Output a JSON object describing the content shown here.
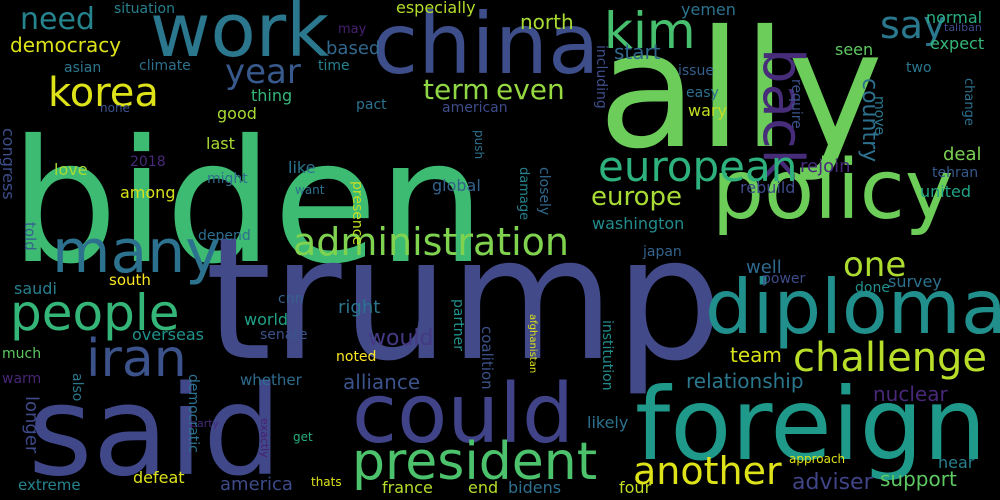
{
  "words": [
    {
      "text": "biden",
      "color": "#3dbb73"
    },
    {
      "text": "ally",
      "color": "#6ccd5a"
    },
    {
      "text": "trump",
      "color": "#424a8a"
    },
    {
      "text": "said",
      "color": "#40488a"
    },
    {
      "text": "foreign",
      "color": "#1f998a"
    },
    {
      "text": "china",
      "color": "#3d4e8a"
    },
    {
      "text": "policy",
      "color": "#6dcd59"
    },
    {
      "text": "work",
      "color": "#2a778e"
    },
    {
      "text": "could",
      "color": "#404387"
    },
    {
      "text": "diplomat",
      "color": "#21908d"
    },
    {
      "text": "president",
      "color": "#4cc26c"
    },
    {
      "text": "administration",
      "color": "#7fd34e"
    },
    {
      "text": "people",
      "color": "#34b679"
    },
    {
      "text": "many",
      "color": "#2c728e"
    },
    {
      "text": "iran",
      "color": "#3b528b"
    },
    {
      "text": "back",
      "color": "#472c7a"
    },
    {
      "text": "kim",
      "color": "#46c06f"
    },
    {
      "text": "korea",
      "color": "#dde318"
    },
    {
      "text": "european",
      "color": "#2db27d"
    },
    {
      "text": "challenge",
      "color": "#b8de29"
    },
    {
      "text": "another",
      "color": "#dde318"
    },
    {
      "text": "term",
      "color": "#8fd744"
    },
    {
      "text": "even",
      "color": "#95d840"
    },
    {
      "text": "say",
      "color": "#2a788e"
    },
    {
      "text": "year",
      "color": "#38598c"
    },
    {
      "text": "one",
      "color": "#addc30"
    },
    {
      "text": "europe",
      "color": "#a8db34"
    },
    {
      "text": "need",
      "color": "#25848e"
    },
    {
      "text": "democracy",
      "color": "#dde318"
    },
    {
      "text": "country",
      "color": "#2d718e"
    },
    {
      "text": "relationship",
      "color": "#2a778e"
    },
    {
      "text": "adviser",
      "color": "#414487"
    },
    {
      "text": "would",
      "color": "#443983"
    },
    {
      "text": "team",
      "color": "#d8e219"
    },
    {
      "text": "alliance",
      "color": "#3b528b"
    },
    {
      "text": "nuclear",
      "color": "#482878"
    },
    {
      "text": "support",
      "color": "#5ec962"
    },
    {
      "text": "america",
      "color": "#3e4a89"
    },
    {
      "text": "north",
      "color": "#a8db34"
    },
    {
      "text": "start",
      "color": "#31688e"
    },
    {
      "text": "based",
      "color": "#31688e"
    },
    {
      "text": "especially",
      "color": "#b5de2b"
    },
    {
      "text": "yemen",
      "color": "#2c728e"
    },
    {
      "text": "normal",
      "color": "#29af7f"
    },
    {
      "text": "seen",
      "color": "#5ec962"
    },
    {
      "text": "expect",
      "color": "#35b779"
    },
    {
      "text": "rejoin",
      "color": "#472a7a"
    },
    {
      "text": "deal",
      "color": "#7ad151"
    },
    {
      "text": "tehran",
      "color": "#38598c"
    },
    {
      "text": "united",
      "color": "#20a386"
    },
    {
      "text": "rebuild",
      "color": "#3e4a89"
    },
    {
      "text": "washington",
      "color": "#228c8d"
    },
    {
      "text": "well",
      "color": "#306a8e"
    },
    {
      "text": "survey",
      "color": "#2d708e"
    },
    {
      "text": "done",
      "color": "#21918c"
    },
    {
      "text": "power",
      "color": "#3e4c8a"
    },
    {
      "text": "japan",
      "color": "#33638d"
    },
    {
      "text": "right",
      "color": "#2b748e"
    },
    {
      "text": "world",
      "color": "#1fa187"
    },
    {
      "text": "senate",
      "color": "#3b528b"
    },
    {
      "text": "noted",
      "color": "#fde725"
    },
    {
      "text": "whether",
      "color": "#2e6d8e"
    },
    {
      "text": "overseas",
      "color": "#20928c"
    },
    {
      "text": "south",
      "color": "#fde725"
    },
    {
      "text": "saudi",
      "color": "#277f8e"
    },
    {
      "text": "much",
      "color": "#5ec962"
    },
    {
      "text": "warm",
      "color": "#482576"
    },
    {
      "text": "also",
      "color": "#2a788e"
    },
    {
      "text": "longer",
      "color": "#3e4a89"
    },
    {
      "text": "extreme",
      "color": "#25858e"
    },
    {
      "text": "defeat",
      "color": "#dde318"
    },
    {
      "text": "france",
      "color": "#b5de2b"
    },
    {
      "text": "end",
      "color": "#b5de2b"
    },
    {
      "text": "bidens",
      "color": "#2e6f8e"
    },
    {
      "text": "four",
      "color": "#c0df25"
    },
    {
      "text": "likely",
      "color": "#2c728e"
    },
    {
      "text": "near",
      "color": "#277f8e"
    },
    {
      "text": "approach",
      "color": "#dde318"
    },
    {
      "text": "thats",
      "color": "#dde318"
    },
    {
      "text": "get",
      "color": "#29af7f"
    },
    {
      "text": "party",
      "color": "#472a7a"
    },
    {
      "text": "exactly",
      "color": "#481f70"
    },
    {
      "text": "democratic",
      "color": "#2c728e"
    },
    {
      "text": "afghanistan",
      "color": "#dde318"
    },
    {
      "text": "institution",
      "color": "#228c8d"
    },
    {
      "text": "partner",
      "color": "#21918c"
    },
    {
      "text": "coalition",
      "color": "#3b528b"
    },
    {
      "text": "closely",
      "color": "#31688e"
    },
    {
      "text": "damage",
      "color": "#26828e"
    },
    {
      "text": "global",
      "color": "#33638d"
    },
    {
      "text": "presence",
      "color": "#c2df23"
    },
    {
      "text": "cnn",
      "color": "#355f8d"
    },
    {
      "text": "depend",
      "color": "#2e6e8e"
    },
    {
      "text": "told",
      "color": "#355f8d"
    },
    {
      "text": "congress",
      "color": "#3d4e8a"
    },
    {
      "text": "situation",
      "color": "#277f8e"
    },
    {
      "text": "may",
      "color": "#481f70"
    },
    {
      "text": "asian",
      "color": "#2a778e"
    },
    {
      "text": "climate",
      "color": "#2d708e"
    },
    {
      "text": "time",
      "color": "#26828e"
    },
    {
      "text": "none",
      "color": "#3b528b"
    },
    {
      "text": "pact",
      "color": "#2c728e"
    },
    {
      "text": "american",
      "color": "#3e4c8a"
    },
    {
      "text": "including",
      "color": "#3d4e8a"
    },
    {
      "text": "issue",
      "color": "#355f8d"
    },
    {
      "text": "easy",
      "color": "#2d708e"
    },
    {
      "text": "wary",
      "color": "#c2df23"
    },
    {
      "text": "require",
      "color": "#3b528b"
    },
    {
      "text": "move",
      "color": "#2a778e"
    },
    {
      "text": "two",
      "color": "#2a778e"
    },
    {
      "text": "change",
      "color": "#2d708e"
    },
    {
      "text": "taliban",
      "color": "#3e4c8a"
    },
    {
      "text": "good",
      "color": "#a8db34"
    },
    {
      "text": "thing",
      "color": "#35b779"
    },
    {
      "text": "last",
      "color": "#a8db34"
    },
    {
      "text": "love",
      "color": "#a8db34"
    },
    {
      "text": "2018",
      "color": "#482878"
    },
    {
      "text": "among",
      "color": "#d8e219"
    },
    {
      "text": "might",
      "color": "#2e6e8e"
    },
    {
      "text": "like",
      "color": "#2b748e"
    },
    {
      "text": "want",
      "color": "#2c728e"
    },
    {
      "text": "push",
      "color": "#2c728e"
    }
  ]
}
